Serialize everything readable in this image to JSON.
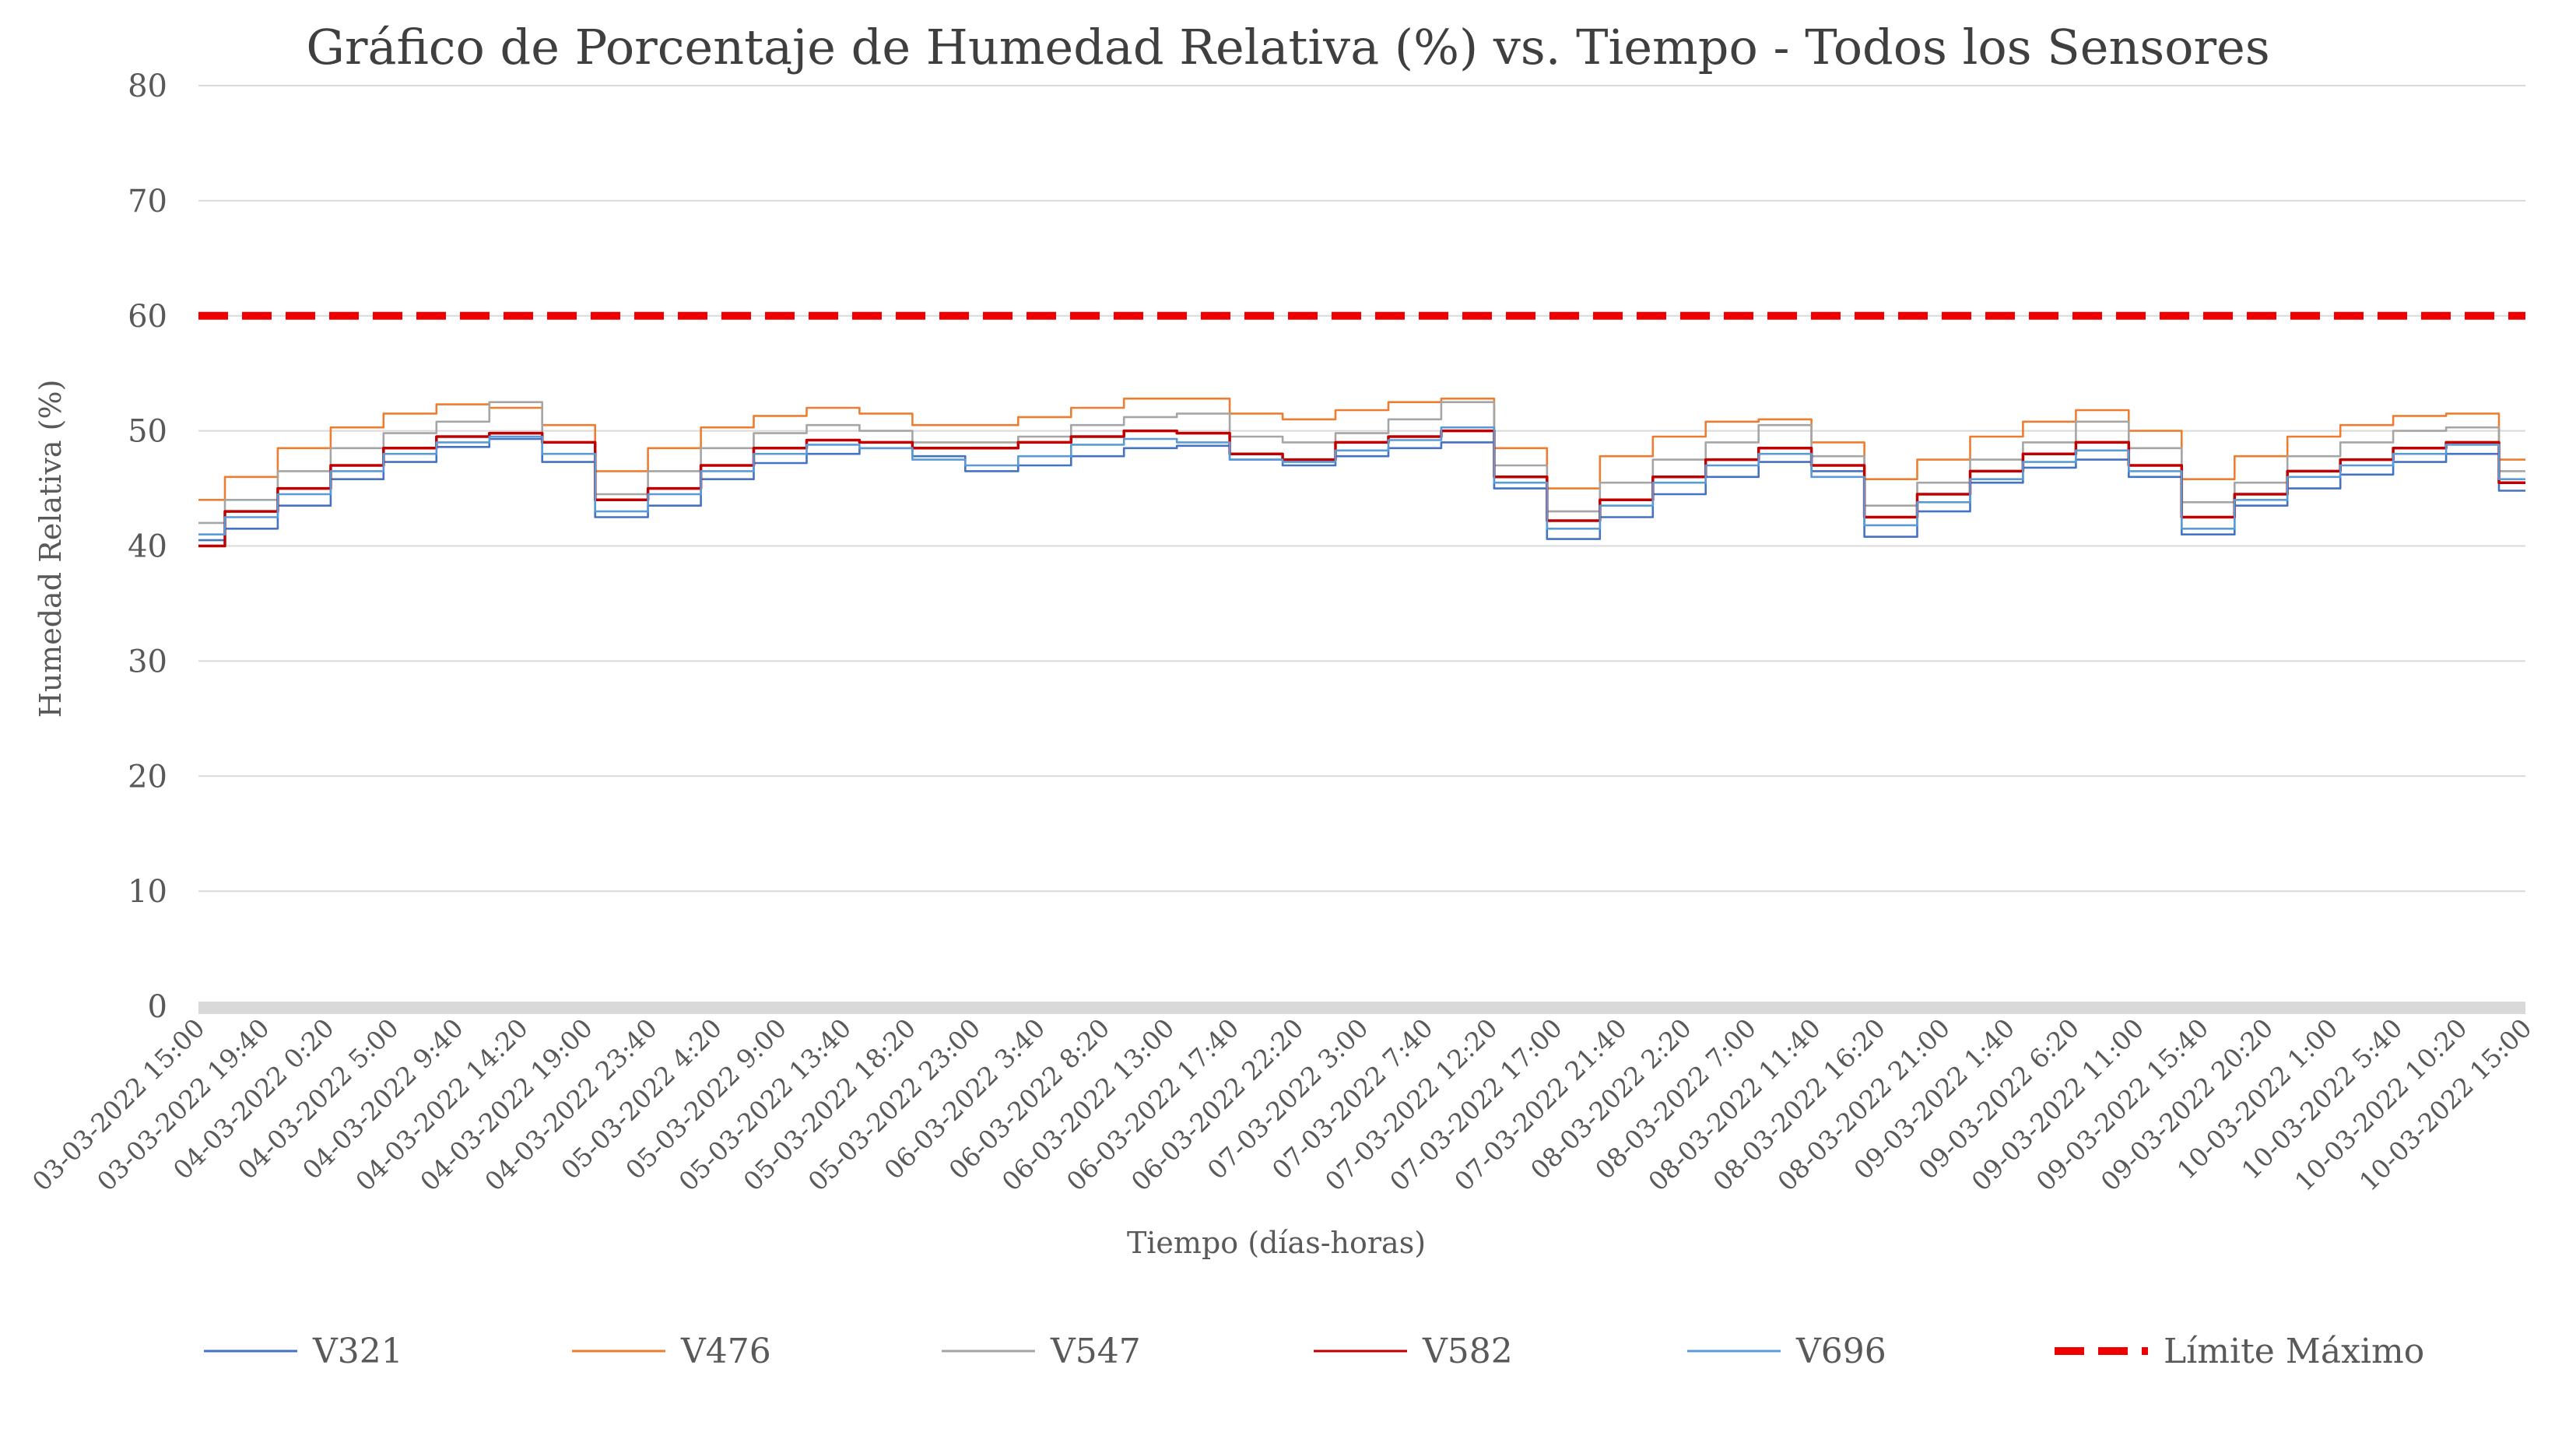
{
  "chart_data": {
    "type": "line",
    "title": "Gráfico de Porcentaje de Humedad Relativa (%) vs. Tiempo - Todos los Sensores",
    "xlabel": "Tiempo (días-horas)",
    "ylabel": "Humedad Relativa (%)",
    "ylim": [
      0,
      80
    ],
    "yticks": [
      "0",
      "10",
      "20",
      "30",
      "40",
      "50",
      "60",
      "70",
      "80"
    ],
    "grid": true,
    "legend_position": "bottom",
    "x_tick_labels": [
      "03-03-2022 15:00",
      "03-03-2022 19:40",
      "04-03-2022 0:20",
      "04-03-2022 5:00",
      "04-03-2022 9:40",
      "04-03-2022 14:20",
      "04-03-2022 19:00",
      "04-03-2022 23:40",
      "05-03-2022 4:20",
      "05-03-2022 9:00",
      "05-03-2022 13:40",
      "05-03-2022 18:20",
      "05-03-2022 23:00",
      "06-03-2022 3:40",
      "06-03-2022 8:20",
      "06-03-2022 13:00",
      "06-03-2022 17:40",
      "06-03-2022 22:20",
      "07-03-2022 3:00",
      "07-03-2022 7:40",
      "07-03-2022 12:20",
      "07-03-2022 17:00",
      "07-03-2022 21:40",
      "08-03-2022 2:20",
      "08-03-2022 7:00",
      "08-03-2022 11:40",
      "08-03-2022 16:20",
      "08-03-2022 21:00",
      "09-03-2022 1:40",
      "09-03-2022 6:20",
      "09-03-2022 11:00",
      "09-03-2022 15:40",
      "09-03-2022 20:20",
      "10-03-2022 1:00",
      "10-03-2022 5:40",
      "10-03-2022 10:20",
      "10-03-2022 15:00"
    ],
    "series": [
      {
        "name": "V321",
        "color": "#4472c4",
        "values": [
          40.5,
          41.5,
          43.5,
          45.8,
          47.3,
          48.6,
          49.3,
          47.3,
          42.5,
          43.5,
          45.8,
          47.2,
          48.0,
          48.5,
          47.8,
          46.5,
          47.0,
          47.8,
          48.5,
          48.7,
          47.5,
          47.0,
          47.8,
          48.5,
          49.0,
          45.0,
          40.6,
          42.5,
          44.5,
          46.0,
          47.3,
          46.5,
          40.8,
          43.0,
          45.5,
          46.8,
          47.5,
          46.0,
          41.0,
          43.5,
          45.0,
          46.2,
          47.3,
          48.0,
          44.8
        ]
      },
      {
        "name": "V476",
        "color": "#ed7d31",
        "values": [
          44.0,
          46.0,
          48.5,
          50.3,
          51.5,
          52.3,
          52.0,
          50.5,
          46.5,
          48.5,
          50.3,
          51.3,
          52.0,
          51.5,
          50.5,
          50.5,
          51.2,
          52.0,
          52.8,
          52.8,
          51.5,
          51.0,
          51.8,
          52.5,
          52.8,
          48.5,
          45.0,
          47.8,
          49.5,
          50.8,
          51.0,
          49.0,
          45.8,
          47.5,
          49.5,
          50.8,
          51.8,
          50.0,
          45.8,
          47.8,
          49.5,
          50.5,
          51.3,
          51.5,
          47.5
        ]
      },
      {
        "name": "V547",
        "color": "#a5a5a5",
        "values": [
          42.0,
          44.0,
          46.5,
          48.5,
          49.8,
          50.8,
          52.5,
          49.0,
          44.5,
          46.5,
          48.5,
          49.8,
          50.5,
          50.0,
          49.0,
          49.0,
          49.5,
          50.5,
          51.2,
          51.5,
          49.5,
          49.0,
          49.8,
          51.0,
          52.5,
          47.0,
          43.0,
          45.5,
          47.5,
          49.0,
          50.5,
          47.8,
          43.5,
          45.5,
          47.5,
          49.0,
          50.8,
          48.5,
          43.8,
          45.5,
          47.8,
          49.0,
          50.0,
          50.3,
          46.5
        ]
      },
      {
        "name": "V582",
        "color": "#c00000",
        "values": [
          40.0,
          43.0,
          45.0,
          47.0,
          48.5,
          49.5,
          49.8,
          49.0,
          44.0,
          45.0,
          47.0,
          48.5,
          49.2,
          49.0,
          48.5,
          48.5,
          49.0,
          49.5,
          50.0,
          49.8,
          48.0,
          47.5,
          49.0,
          49.5,
          50.0,
          46.0,
          42.2,
          44.0,
          46.0,
          47.5,
          48.5,
          47.0,
          42.5,
          44.5,
          46.5,
          48.0,
          49.0,
          47.0,
          42.5,
          44.5,
          46.5,
          47.5,
          48.5,
          49.0,
          45.5
        ]
      },
      {
        "name": "V696",
        "color": "#5b9bd5",
        "values": [
          41.0,
          42.5,
          44.5,
          46.5,
          48.0,
          49.0,
          49.5,
          48.0,
          43.0,
          44.5,
          46.5,
          48.0,
          48.8,
          48.5,
          47.5,
          47.0,
          47.8,
          48.8,
          49.3,
          49.0,
          47.5,
          47.3,
          48.3,
          49.2,
          50.3,
          45.5,
          41.5,
          43.5,
          45.5,
          47.0,
          48.0,
          46.0,
          41.8,
          43.8,
          45.8,
          47.3,
          48.3,
          46.5,
          41.5,
          44.0,
          46.0,
          47.0,
          48.0,
          48.8,
          45.8
        ]
      },
      {
        "name": "Límite Máximo",
        "color": "#ee0000",
        "dashed": true,
        "values": [
          60,
          60
        ]
      }
    ]
  }
}
